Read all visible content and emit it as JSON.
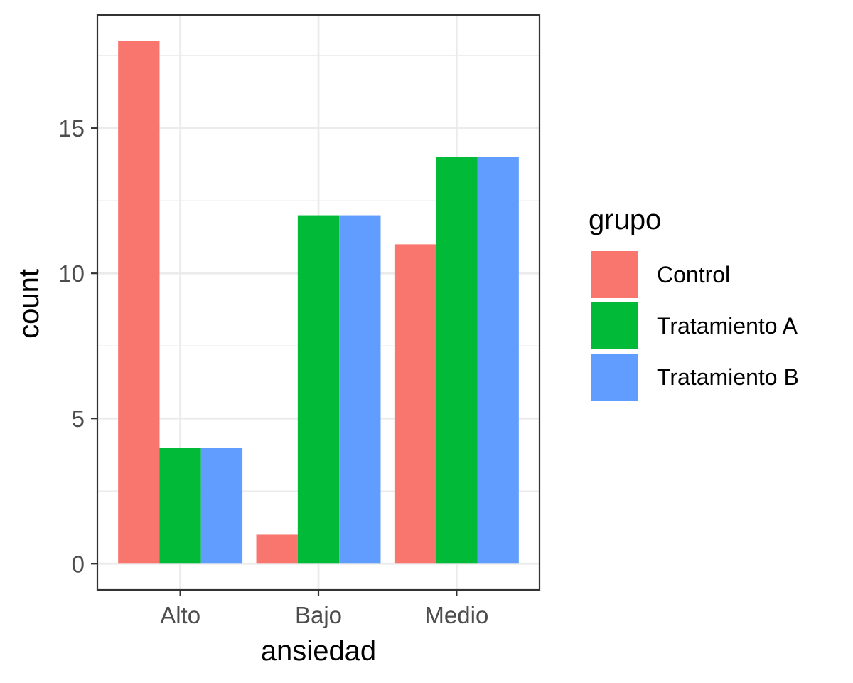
{
  "chart_data": {
    "type": "bar",
    "xlabel": "ansiedad",
    "ylabel": "count",
    "categories": [
      "Alto",
      "Bajo",
      "Medio"
    ],
    "series": [
      {
        "name": "Control",
        "values": [
          18,
          1,
          11
        ],
        "color": "#F8766D"
      },
      {
        "name": "Tratamiento A",
        "values": [
          4,
          12,
          14
        ],
        "color": "#00BA38"
      },
      {
        "name": "Tratamiento B",
        "values": [
          4,
          12,
          14
        ],
        "color": "#619CFF"
      }
    ],
    "yticks": [
      0,
      5,
      10,
      15
    ],
    "ylim": [
      -0.9,
      18.9
    ],
    "grid": true,
    "legend": {
      "title": "grupo",
      "placement": "right"
    }
  }
}
